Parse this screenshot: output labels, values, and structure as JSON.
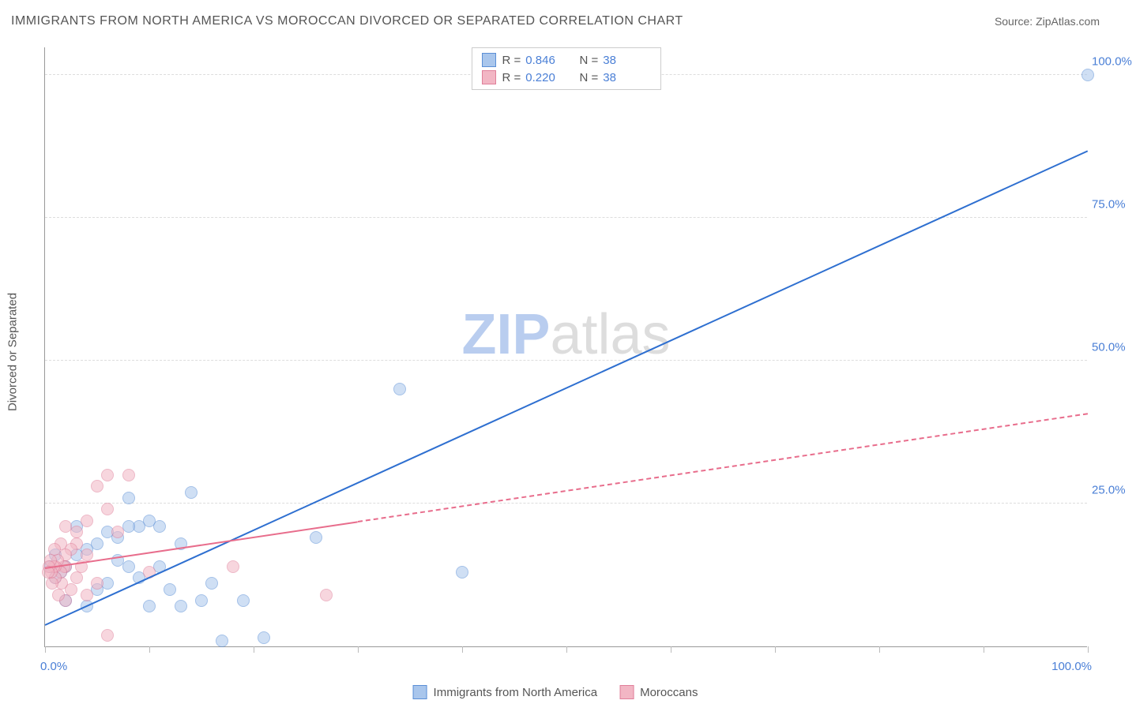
{
  "title": "IMMIGRANTS FROM NORTH AMERICA VS MOROCCAN DIVORCED OR SEPARATED CORRELATION CHART",
  "source_prefix": "Source: ",
  "source_link": "ZipAtlas.com",
  "ylabel": "Divorced or Separated",
  "watermark": {
    "bold": "ZIP",
    "light": "atlas"
  },
  "chart": {
    "type": "scatter",
    "background_color": "#ffffff",
    "grid_color": "#dddddd",
    "axis_color": "#999999",
    "xlim": [
      0,
      100
    ],
    "ylim": [
      0,
      105
    ],
    "ytick_step": 25,
    "ytick_labels": [
      "25.0%",
      "50.0%",
      "75.0%",
      "100.0%"
    ],
    "xlabel_min": "0.0%",
    "xlabel_max": "100.0%",
    "xtick_positions": [
      0,
      10,
      20,
      30,
      40,
      50,
      60,
      70,
      80,
      90,
      100
    ],
    "point_radius": 8,
    "point_opacity": 0.55,
    "series": [
      {
        "name": "Immigrants from North America",
        "fill": "#a9c6ec",
        "stroke": "#5b8fd6",
        "trend": {
          "x1": 0,
          "y1": 4,
          "x2": 100,
          "y2": 87,
          "width": 2.5,
          "dash": false,
          "color": "#2e6fd0"
        },
        "r_value": "0.846",
        "n_value": "38",
        "points": [
          [
            100,
            100
          ],
          [
            40,
            13
          ],
          [
            34,
            45
          ],
          [
            26,
            19
          ],
          [
            21,
            1.5
          ],
          [
            19,
            8
          ],
          [
            17,
            1
          ],
          [
            16,
            11
          ],
          [
            15,
            8
          ],
          [
            14,
            27
          ],
          [
            13,
            7
          ],
          [
            13,
            18
          ],
          [
            12,
            10
          ],
          [
            11,
            14
          ],
          [
            11,
            21
          ],
          [
            10,
            7
          ],
          [
            10,
            22
          ],
          [
            9,
            21
          ],
          [
            9,
            12
          ],
          [
            8,
            26
          ],
          [
            8,
            14
          ],
          [
            8,
            21
          ],
          [
            7,
            19
          ],
          [
            7,
            15
          ],
          [
            6,
            11
          ],
          [
            6,
            20
          ],
          [
            5,
            10
          ],
          [
            5,
            18
          ],
          [
            4,
            7
          ],
          [
            4,
            17
          ],
          [
            3,
            21
          ],
          [
            3,
            16
          ],
          [
            2,
            14
          ],
          [
            2,
            8
          ],
          [
            1.5,
            13
          ],
          [
            1,
            16
          ],
          [
            1,
            12
          ],
          [
            0.5,
            14
          ]
        ]
      },
      {
        "name": "Moroccans",
        "fill": "#f2b6c4",
        "stroke": "#e07f9a",
        "trend": {
          "x1": 0,
          "y1": 14,
          "x2": 100,
          "y2": 41,
          "width": 2,
          "dash": true,
          "color": "#e86d8c",
          "solid_until": 30
        },
        "r_value": "0.220",
        "n_value": "38",
        "points": [
          [
            27,
            9
          ],
          [
            18,
            14
          ],
          [
            10,
            13
          ],
          [
            8,
            30
          ],
          [
            7,
            20
          ],
          [
            6,
            24
          ],
          [
            6,
            30
          ],
          [
            6,
            2
          ],
          [
            5,
            28
          ],
          [
            5,
            11
          ],
          [
            4,
            16
          ],
          [
            4,
            22
          ],
          [
            4,
            9
          ],
          [
            3.5,
            14
          ],
          [
            3,
            18
          ],
          [
            3,
            12
          ],
          [
            3,
            20
          ],
          [
            2.5,
            10
          ],
          [
            2.5,
            17
          ],
          [
            2,
            14
          ],
          [
            2,
            21
          ],
          [
            2,
            8
          ],
          [
            2,
            16
          ],
          [
            1.8,
            14
          ],
          [
            1.6,
            11
          ],
          [
            1.5,
            18
          ],
          [
            1.5,
            13
          ],
          [
            1.3,
            9
          ],
          [
            1.2,
            15
          ],
          [
            1,
            14
          ],
          [
            1,
            12
          ],
          [
            0.9,
            17
          ],
          [
            0.8,
            14
          ],
          [
            0.7,
            11
          ],
          [
            0.6,
            13
          ],
          [
            0.5,
            15
          ],
          [
            0.4,
            14
          ],
          [
            0.3,
            13
          ]
        ]
      }
    ],
    "legend_top": {
      "r_label": "R =",
      "n_label": "N ="
    },
    "legend_bottom": [
      {
        "label": "Immigrants from North America",
        "fill": "#a9c6ec",
        "stroke": "#5b8fd6"
      },
      {
        "label": "Moroccans",
        "fill": "#f2b6c4",
        "stroke": "#e07f9a"
      }
    ]
  }
}
